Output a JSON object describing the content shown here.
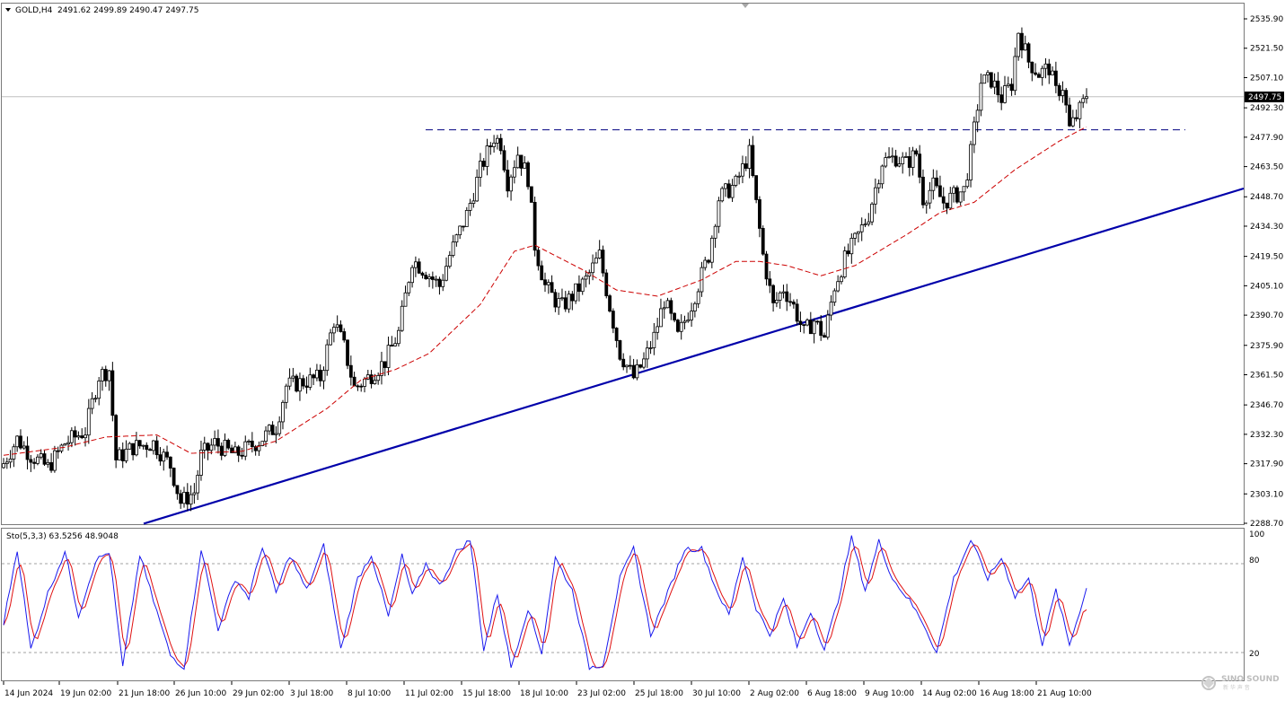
{
  "header": {
    "symbol": "GOLD,H4",
    "ohlc": "2491.62 2499.89 2490.47 2497.75"
  },
  "indicator": {
    "label": "Sto(5,3,3) 63.5256 48.9048",
    "levels": [
      "100",
      "80",
      "20"
    ]
  },
  "price_badge": "2497.75",
  "watermark": {
    "brand": "SINO SOUND",
    "sub": "新 华 声 音"
  },
  "colors": {
    "up_candle": "#000000",
    "ma": "#cc0000",
    "trendline": "#0000aa",
    "resistance": "#000080",
    "stoch_k": "#1a1aee",
    "stoch_d": "#e01010",
    "grid": "#a0a0a0"
  },
  "chart_data": {
    "type": "candlestick",
    "instrument": "GOLD",
    "timeframe": "H4",
    "y_ticks": [
      "2535.90",
      "2521.50",
      "2507.10",
      "2492.30",
      "2477.90",
      "2463.50",
      "2448.70",
      "2434.30",
      "2419.50",
      "2405.10",
      "2390.70",
      "2375.90",
      "2361.50",
      "2346.70",
      "2332.30",
      "2317.90",
      "2303.10",
      "2288.70"
    ],
    "x_ticks": [
      "14 Jun 2024",
      "19 Jun 02:00",
      "21 Jun 18:00",
      "26 Jun 10:00",
      "29 Jun 02:00",
      "3 Jul 18:00",
      "8 Jul 10:00",
      "11 Jul 02:00",
      "15 Jul 18:00",
      "18 Jul 10:00",
      "23 Jul 02:00",
      "25 Jul 18:00",
      "30 Jul 10:00",
      "2 Aug 02:00",
      "6 Aug 18:00",
      "9 Aug 10:00",
      "14 Aug 02:00",
      "16 Aug 18:00",
      "21 Aug 10:00"
    ],
    "last_price": 2497.75,
    "resistance_level": 2481.5,
    "trendline": {
      "from": {
        "time": "14 Jun 2024",
        "price": 2275.0
      },
      "to": {
        "time": "23 Aug 2024",
        "price": 2454.0
      }
    },
    "moving_average_anchors": [
      {
        "i": 0,
        "v": 2322
      },
      {
        "i": 18,
        "v": 2326
      },
      {
        "i": 30,
        "v": 2331
      },
      {
        "i": 45,
        "v": 2332
      },
      {
        "i": 55,
        "v": 2323
      },
      {
        "i": 70,
        "v": 2324
      },
      {
        "i": 80,
        "v": 2329
      },
      {
        "i": 95,
        "v": 2345
      },
      {
        "i": 105,
        "v": 2359
      },
      {
        "i": 115,
        "v": 2364
      },
      {
        "i": 125,
        "v": 2372
      },
      {
        "i": 140,
        "v": 2396
      },
      {
        "i": 150,
        "v": 2422
      },
      {
        "i": 156,
        "v": 2425
      },
      {
        "i": 170,
        "v": 2413
      },
      {
        "i": 180,
        "v": 2403
      },
      {
        "i": 192,
        "v": 2400
      },
      {
        "i": 205,
        "v": 2408
      },
      {
        "i": 215,
        "v": 2417
      },
      {
        "i": 222,
        "v": 2417
      },
      {
        "i": 230,
        "v": 2415
      },
      {
        "i": 240,
        "v": 2410
      },
      {
        "i": 250,
        "v": 2415
      },
      {
        "i": 258,
        "v": 2423
      },
      {
        "i": 265,
        "v": 2430
      },
      {
        "i": 275,
        "v": 2441
      },
      {
        "i": 285,
        "v": 2446
      },
      {
        "i": 297,
        "v": 2462
      },
      {
        "i": 310,
        "v": 2476
      },
      {
        "i": 318,
        "v": 2483
      }
    ],
    "price_anchors": [
      {
        "i": 0,
        "v": 2318
      },
      {
        "i": 4,
        "v": 2330
      },
      {
        "i": 8,
        "v": 2322
      },
      {
        "i": 13,
        "v": 2316
      },
      {
        "i": 18,
        "v": 2328
      },
      {
        "i": 24,
        "v": 2334
      },
      {
        "i": 28,
        "v": 2361
      },
      {
        "i": 31,
        "v": 2364
      },
      {
        "i": 33,
        "v": 2320
      },
      {
        "i": 38,
        "v": 2326
      },
      {
        "i": 44,
        "v": 2328
      },
      {
        "i": 49,
        "v": 2317
      },
      {
        "i": 52,
        "v": 2299
      },
      {
        "i": 56,
        "v": 2304
      },
      {
        "i": 58,
        "v": 2322
      },
      {
        "i": 62,
        "v": 2328
      },
      {
        "i": 68,
        "v": 2322
      },
      {
        "i": 75,
        "v": 2329
      },
      {
        "i": 80,
        "v": 2336
      },
      {
        "i": 83,
        "v": 2356
      },
      {
        "i": 88,
        "v": 2358
      },
      {
        "i": 93,
        "v": 2360
      },
      {
        "i": 97,
        "v": 2388
      },
      {
        "i": 100,
        "v": 2375
      },
      {
        "i": 103,
        "v": 2355
      },
      {
        "i": 107,
        "v": 2360
      },
      {
        "i": 112,
        "v": 2368
      },
      {
        "i": 116,
        "v": 2382
      },
      {
        "i": 120,
        "v": 2418
      },
      {
        "i": 124,
        "v": 2412
      },
      {
        "i": 128,
        "v": 2405
      },
      {
        "i": 131,
        "v": 2420
      },
      {
        "i": 136,
        "v": 2440
      },
      {
        "i": 140,
        "v": 2462
      },
      {
        "i": 144,
        "v": 2478
      },
      {
        "i": 146,
        "v": 2475
      },
      {
        "i": 148,
        "v": 2456
      },
      {
        "i": 151,
        "v": 2470
      },
      {
        "i": 154,
        "v": 2458
      },
      {
        "i": 156,
        "v": 2425
      },
      {
        "i": 159,
        "v": 2405
      },
      {
        "i": 162,
        "v": 2398
      },
      {
        "i": 164,
        "v": 2395
      },
      {
        "i": 167,
        "v": 2400
      },
      {
        "i": 171,
        "v": 2408
      },
      {
        "i": 175,
        "v": 2420
      },
      {
        "i": 178,
        "v": 2395
      },
      {
        "i": 181,
        "v": 2372
      },
      {
        "i": 185,
        "v": 2360
      },
      {
        "i": 188,
        "v": 2368
      },
      {
        "i": 191,
        "v": 2380
      },
      {
        "i": 194,
        "v": 2398
      },
      {
        "i": 198,
        "v": 2380
      },
      {
        "i": 202,
        "v": 2396
      },
      {
        "i": 207,
        "v": 2420
      },
      {
        "i": 210,
        "v": 2448
      },
      {
        "i": 215,
        "v": 2455
      },
      {
        "i": 219,
        "v": 2470
      },
      {
        "i": 221,
        "v": 2445
      },
      {
        "i": 223,
        "v": 2420
      },
      {
        "i": 226,
        "v": 2395
      },
      {
        "i": 229,
        "v": 2404
      },
      {
        "i": 232,
        "v": 2395
      },
      {
        "i": 235,
        "v": 2382
      },
      {
        "i": 238,
        "v": 2388
      },
      {
        "i": 241,
        "v": 2380
      },
      {
        "i": 244,
        "v": 2405
      },
      {
        "i": 247,
        "v": 2418
      },
      {
        "i": 251,
        "v": 2430
      },
      {
        "i": 254,
        "v": 2440
      },
      {
        "i": 258,
        "v": 2466
      },
      {
        "i": 262,
        "v": 2468
      },
      {
        "i": 265,
        "v": 2465
      },
      {
        "i": 268,
        "v": 2470
      },
      {
        "i": 270,
        "v": 2448
      },
      {
        "i": 273,
        "v": 2454
      },
      {
        "i": 276,
        "v": 2446
      },
      {
        "i": 279,
        "v": 2449
      },
      {
        "i": 282,
        "v": 2452
      },
      {
        "i": 284,
        "v": 2470
      },
      {
        "i": 287,
        "v": 2505
      },
      {
        "i": 290,
        "v": 2506
      },
      {
        "i": 293,
        "v": 2497
      },
      {
        "i": 296,
        "v": 2504
      },
      {
        "i": 298,
        "v": 2530
      },
      {
        "i": 301,
        "v": 2515
      },
      {
        "i": 304,
        "v": 2509
      },
      {
        "i": 307,
        "v": 2512
      },
      {
        "i": 309,
        "v": 2500
      },
      {
        "i": 311,
        "v": 2503
      },
      {
        "i": 313,
        "v": 2482
      },
      {
        "i": 315,
        "v": 2488
      },
      {
        "i": 318,
        "v": 2497.75
      }
    ],
    "stochastic": {
      "name": "Sto(5,3,3)",
      "k_last": 63.5256,
      "d_last": 48.9048,
      "levels": [
        20,
        80
      ],
      "range": [
        0,
        100
      ],
      "k_anchors": [
        {
          "i": 0,
          "v": 40
        },
        {
          "i": 4,
          "v": 90
        },
        {
          "i": 8,
          "v": 22
        },
        {
          "i": 13,
          "v": 60
        },
        {
          "i": 18,
          "v": 88
        },
        {
          "i": 22,
          "v": 45
        },
        {
          "i": 27,
          "v": 82
        },
        {
          "i": 31,
          "v": 88
        },
        {
          "i": 35,
          "v": 10
        },
        {
          "i": 40,
          "v": 86
        },
        {
          "i": 44,
          "v": 55
        },
        {
          "i": 49,
          "v": 18
        },
        {
          "i": 53,
          "v": 10
        },
        {
          "i": 58,
          "v": 90
        },
        {
          "i": 63,
          "v": 36
        },
        {
          "i": 68,
          "v": 70
        },
        {
          "i": 72,
          "v": 57
        },
        {
          "i": 76,
          "v": 92
        },
        {
          "i": 80,
          "v": 60
        },
        {
          "i": 84,
          "v": 86
        },
        {
          "i": 89,
          "v": 62
        },
        {
          "i": 94,
          "v": 92
        },
        {
          "i": 99,
          "v": 22
        },
        {
          "i": 104,
          "v": 70
        },
        {
          "i": 108,
          "v": 86
        },
        {
          "i": 113,
          "v": 44
        },
        {
          "i": 117,
          "v": 85
        },
        {
          "i": 120,
          "v": 58
        },
        {
          "i": 124,
          "v": 80
        },
        {
          "i": 128,
          "v": 65
        },
        {
          "i": 133,
          "v": 88
        },
        {
          "i": 137,
          "v": 96
        },
        {
          "i": 141,
          "v": 22
        },
        {
          "i": 145,
          "v": 60
        },
        {
          "i": 149,
          "v": 10
        },
        {
          "i": 154,
          "v": 50
        },
        {
          "i": 158,
          "v": 20
        },
        {
          "i": 162,
          "v": 84
        },
        {
          "i": 167,
          "v": 62
        },
        {
          "i": 172,
          "v": 10
        },
        {
          "i": 176,
          "v": 12
        },
        {
          "i": 181,
          "v": 70
        },
        {
          "i": 185,
          "v": 90
        },
        {
          "i": 190,
          "v": 32
        },
        {
          "i": 195,
          "v": 60
        },
        {
          "i": 200,
          "v": 90
        },
        {
          "i": 205,
          "v": 90
        },
        {
          "i": 209,
          "v": 64
        },
        {
          "i": 213,
          "v": 45
        },
        {
          "i": 217,
          "v": 85
        },
        {
          "i": 221,
          "v": 50
        },
        {
          "i": 225,
          "v": 32
        },
        {
          "i": 229,
          "v": 56
        },
        {
          "i": 233,
          "v": 24
        },
        {
          "i": 237,
          "v": 48
        },
        {
          "i": 241,
          "v": 22
        },
        {
          "i": 245,
          "v": 55
        },
        {
          "i": 249,
          "v": 98
        },
        {
          "i": 253,
          "v": 62
        },
        {
          "i": 257,
          "v": 95
        },
        {
          "i": 261,
          "v": 70
        },
        {
          "i": 266,
          "v": 55
        },
        {
          "i": 270,
          "v": 40
        },
        {
          "i": 274,
          "v": 20
        },
        {
          "i": 279,
          "v": 70
        },
        {
          "i": 284,
          "v": 96
        },
        {
          "i": 289,
          "v": 70
        },
        {
          "i": 293,
          "v": 84
        },
        {
          "i": 297,
          "v": 58
        },
        {
          "i": 301,
          "v": 70
        },
        {
          "i": 305,
          "v": 26
        },
        {
          "i": 309,
          "v": 62
        },
        {
          "i": 313,
          "v": 25
        },
        {
          "i": 318,
          "v": 63.5256
        }
      ]
    }
  }
}
